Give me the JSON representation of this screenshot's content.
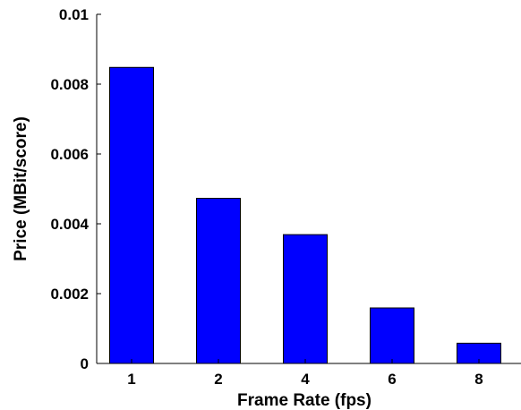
{
  "chart_data": {
    "type": "bar",
    "categories": [
      "1",
      "2",
      "4",
      "6",
      "8"
    ],
    "values": [
      0.00848,
      0.00473,
      0.00369,
      0.00159,
      0.00058
    ],
    "xlabel": "Frame Rate (fps)",
    "ylabel": "Price (MBit/score)",
    "ylim": [
      0,
      0.01
    ],
    "yticks": [
      0,
      0.002,
      0.004,
      0.006,
      0.008,
      0.01
    ],
    "ytick_labels": [
      "0",
      "0.002",
      "0.004",
      "0.006",
      "0.008",
      "0.01"
    ],
    "bar_color": "#0000ff",
    "bar_edge_color": "#000000",
    "grid": false,
    "legend": "none"
  }
}
